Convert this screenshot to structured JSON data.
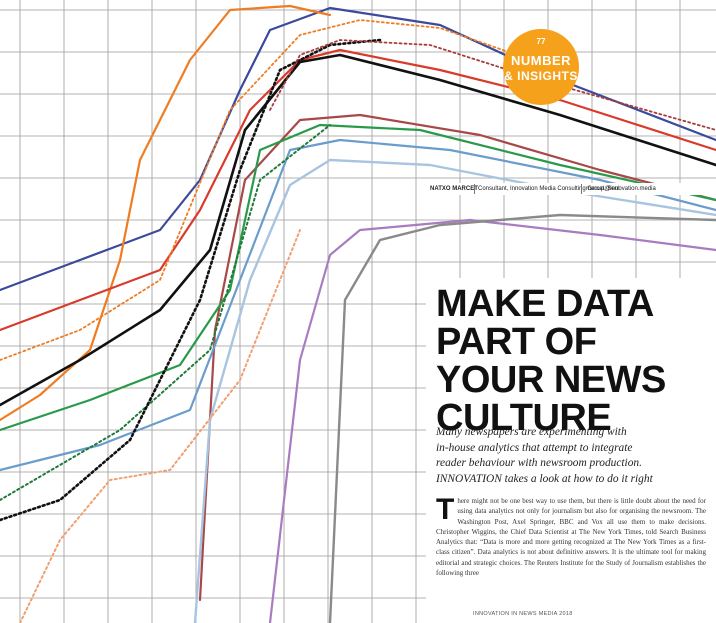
{
  "badge": {
    "page_number": "77",
    "line1": "NUMBER",
    "line2": "& INSIGHTS",
    "color": "#f6a11b"
  },
  "byline": {
    "author": "NATXO MARCET",
    "role": "Consultant, Innovation Media Consulting Group, Seul",
    "email": "marcet@innovation.media"
  },
  "article": {
    "headline_lines": [
      "MAKE DATA",
      "PART OF",
      "YOUR NEWS",
      "CULTURE"
    ],
    "dek_lines": [
      "Many newspapers are experimenting with",
      "in-house analytics that attempt to integrate",
      "reader behaviour with newsroom production.",
      "INNOVATION takes a look at how to do it right"
    ],
    "drop_cap": "T",
    "body": "here might not be one best way to use them, but there is little doubt about the need for using data analytics not only for journalism but also for organising the newsroom. The Washington Post, Axel Springer, BBC and Vox all use them to make decisions. Christopher Wiggins, the Chief Data Scientist at The New York Times, told Search Business Analytics that: “Data is more and more getting recognized at The New York Times as a first-class citizen”. Data analytics is not about definitive answers. It is the ultimate tool for making editorial and strategic choices. The Reuters Institute for the Study of Journalism establishes the following three"
  },
  "footer": "INNOVATION IN NEWS MEDIA 2018",
  "artwork": {
    "icon": "line-graph-artwork",
    "series_colors": [
      "#3b4a9a",
      "#f07c22",
      "#d93a2b",
      "#111111",
      "#a84848",
      "#2a9a4a",
      "#6a9ccc",
      "#a9c4e0",
      "#a87cc0",
      "#8a8a8a",
      "#a83b3b",
      "#f0a070",
      "#1f7a3a"
    ]
  }
}
